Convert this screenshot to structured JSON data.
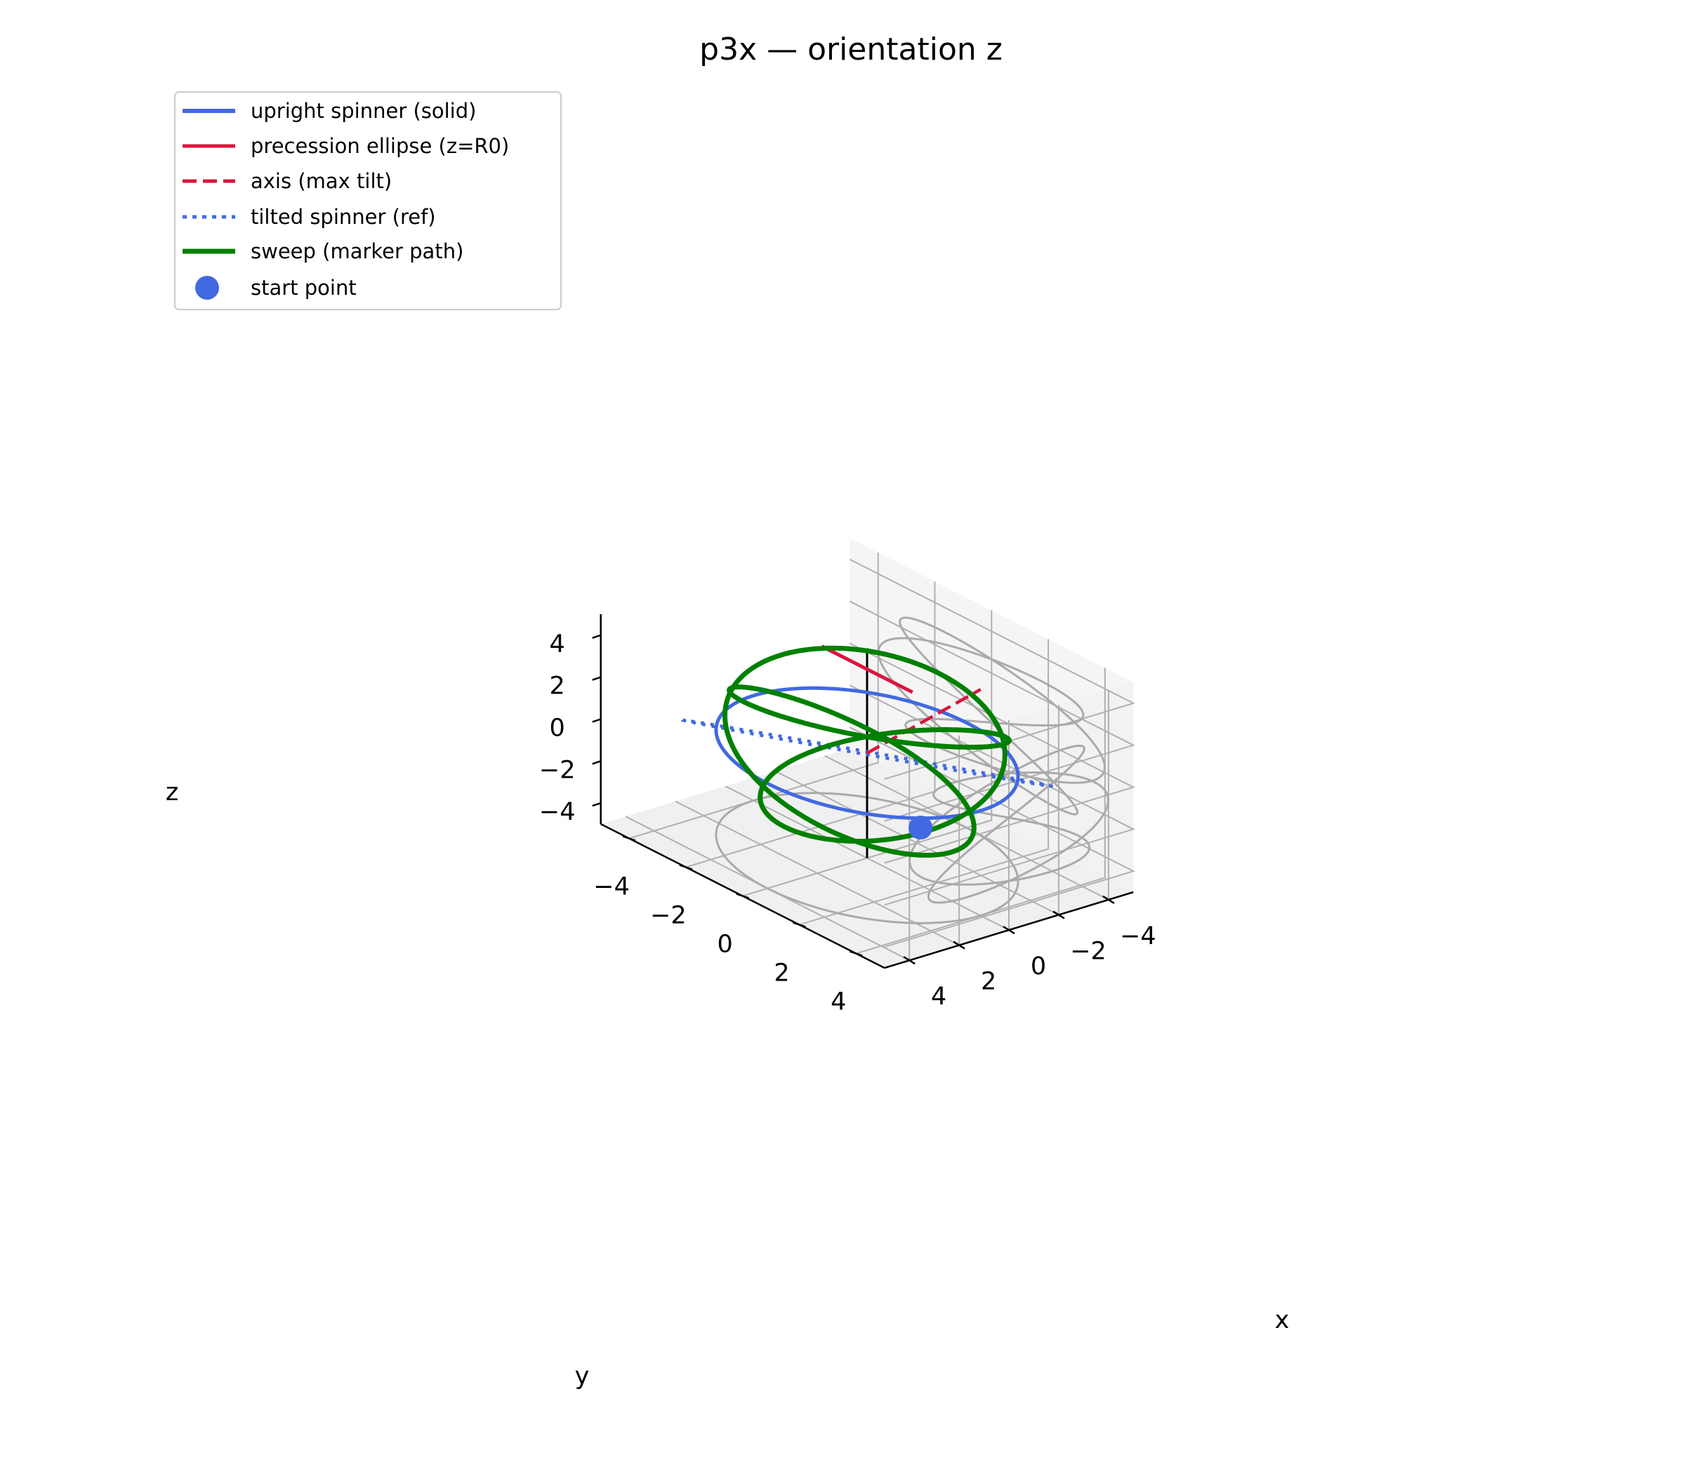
{
  "chart_data": {
    "type": "line",
    "projection": "3d",
    "title": "p3x — orientation z",
    "xlabel": "x",
    "ylabel": "y",
    "zlabel": "z",
    "xlim": [
      -5,
      5
    ],
    "ylim": [
      -5,
      5
    ],
    "zlim": [
      -5,
      5
    ],
    "xticks": [
      -4,
      -2,
      0,
      2,
      4
    ],
    "yticks": [
      -4,
      -2,
      0,
      2,
      4
    ],
    "zticks": [
      -4,
      -2,
      0,
      2,
      4
    ],
    "xtick_labels": [
      "−4",
      "−2",
      "0",
      "2",
      "4"
    ],
    "ytick_labels": [
      "−4",
      "−2",
      "0",
      "2",
      "4"
    ],
    "ztick_labels": [
      "−4",
      "−2",
      "0",
      "2",
      "4"
    ],
    "grid": true,
    "legend_position": "upper left",
    "colors": {
      "upright": "#4169e1",
      "ellipse": "#dc143c",
      "axis": "#dc143c",
      "tilted": "#4169e1",
      "sweep": "#008000",
      "start": "#4169e1",
      "shadow": "#aaaaaa",
      "spindle": "#000000"
    },
    "series": [
      {
        "name": "upright spinner (solid)",
        "style": "solid",
        "curve": "circle",
        "center": [
          0,
          0,
          0
        ],
        "radius": 4,
        "z": 0
      },
      {
        "name": "precession ellipse (z=R0)",
        "style": "solid",
        "points": [
          [
            0,
            -1.6,
            4
          ],
          [
            0,
            1.6,
            4
          ]
        ]
      },
      {
        "name": "axis (max tilt)",
        "style": "dashed",
        "points": [
          [
            0,
            0,
            0
          ],
          [
            -1.85,
            2.38,
            4
          ]
        ]
      },
      {
        "name": "tilted spinner (ref)",
        "style": "dotted",
        "curve": "flat_ellipse",
        "semi_axis": 4.9,
        "minor": 0.1,
        "direction": [
          0.61,
          -0.79,
          0
        ],
        "z": 0
      },
      {
        "name": "sweep (marker path)",
        "style": "solid",
        "curve": "sweep",
        "radius": 4,
        "tilt_deg": 45
      },
      {
        "name": "start point",
        "style": "marker",
        "point": [
          1.51,
          3.21,
          -0.8
        ]
      }
    ],
    "shadows": [
      {
        "plane": "z=-5",
        "source": "upright spinner (solid)"
      },
      {
        "plane": "x=-5",
        "source": "sweep (marker path)"
      },
      {
        "plane": "y=5",
        "source": "sweep (marker path)"
      }
    ],
    "spindle": {
      "points": [
        [
          0,
          0,
          -5
        ],
        [
          0,
          0,
          5
        ]
      ]
    }
  }
}
